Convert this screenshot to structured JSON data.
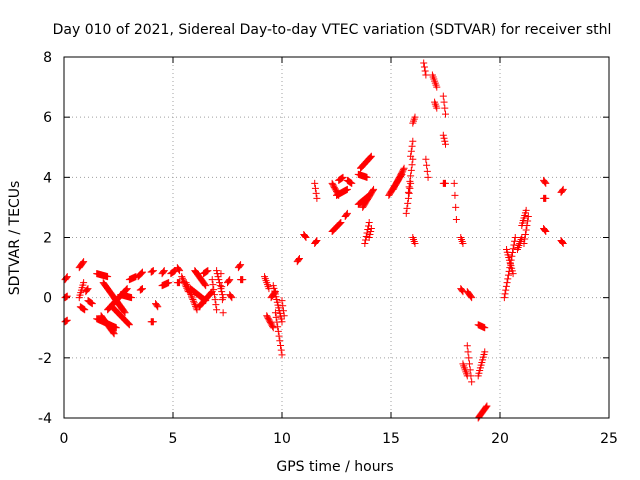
{
  "chart_data": {
    "type": "scatter",
    "title": "Day 010 of 2021, Sidereal Day-to-day VTEC variation (SDTVAR) for receiver sthl",
    "xlabel": "GPS time / hours",
    "ylabel": "SDTVAR / TECUs",
    "xlim": [
      0,
      25
    ],
    "ylim": [
      -4,
      8
    ],
    "xticks": [
      0,
      5,
      10,
      15,
      20,
      25
    ],
    "yticks": [
      -4,
      -2,
      0,
      2,
      4,
      6,
      8
    ],
    "xtick_labels": [
      "0",
      "5",
      "10",
      "15",
      "20",
      "25"
    ],
    "ytick_labels": [
      "-4",
      "-2",
      "0",
      "2",
      "4",
      "6",
      "8"
    ],
    "grid": true,
    "marker": "+",
    "color": "#ff0000",
    "segments": [
      {
        "x0": 0.05,
        "x1": 0.15,
        "y0": 0.6,
        "y1": 0.7
      },
      {
        "x0": 0.05,
        "x1": 0.15,
        "y0": 0.0,
        "y1": 0.05
      },
      {
        "x0": 0.05,
        "x1": 0.15,
        "y0": -0.8,
        "y1": -0.75
      },
      {
        "x0": 0.7,
        "x1": 0.9,
        "y0": 1.0,
        "y1": 1.2
      },
      {
        "x0": 0.7,
        "x1": 0.9,
        "y0": 0.0,
        "y1": 0.5
      },
      {
        "x0": 0.75,
        "x1": 0.95,
        "y0": -0.3,
        "y1": -0.4
      },
      {
        "x0": 1.0,
        "x1": 1.1,
        "y0": 0.2,
        "y1": 0.3
      },
      {
        "x0": 1.1,
        "x1": 1.3,
        "y0": -0.1,
        "y1": -0.2
      },
      {
        "x0": 1.5,
        "x1": 2.0,
        "y0": 0.8,
        "y1": 0.7
      },
      {
        "x0": 1.5,
        "x1": 2.4,
        "y0": -0.7,
        "y1": -1.0
      },
      {
        "x0": 1.7,
        "x1": 2.3,
        "y0": -0.6,
        "y1": -1.2
      },
      {
        "x0": 1.8,
        "x1": 2.8,
        "y0": 0.5,
        "y1": -0.5
      },
      {
        "x0": 2.0,
        "x1": 2.9,
        "y0": -0.4,
        "y1": 0.3
      },
      {
        "x0": 2.2,
        "x1": 3.0,
        "y0": -0.3,
        "y1": -0.9
      },
      {
        "x0": 2.3,
        "x1": 2.7,
        "y0": 0.0,
        "y1": -0.4
      },
      {
        "x0": 2.6,
        "x1": 3.1,
        "y0": 0.1,
        "y1": 0.0
      },
      {
        "x0": 3.0,
        "x1": 3.3,
        "y0": 0.6,
        "y1": 0.7
      },
      {
        "x0": 3.4,
        "x1": 3.6,
        "y0": 0.7,
        "y1": 0.85
      },
      {
        "x0": 3.5,
        "x1": 3.6,
        "y0": 0.25,
        "y1": 0.3
      },
      {
        "x0": 4.0,
        "x1": 4.1,
        "y0": 0.85,
        "y1": 0.9
      },
      {
        "x0": 4.0,
        "x1": 4.1,
        "y0": -0.8,
        "y1": -0.8
      },
      {
        "x0": 4.2,
        "x1": 4.3,
        "y0": -0.2,
        "y1": -0.3
      },
      {
        "x0": 4.5,
        "x1": 4.6,
        "y0": 0.8,
        "y1": 0.9
      },
      {
        "x0": 4.5,
        "x1": 4.8,
        "y0": 0.4,
        "y1": 0.5
      },
      {
        "x0": 4.9,
        "x1": 5.1,
        "y0": 0.8,
        "y1": 0.9
      },
      {
        "x0": 5.2,
        "x1": 5.3,
        "y0": 1.0,
        "y1": 0.9
      },
      {
        "x0": 5.2,
        "x1": 5.3,
        "y0": 0.5,
        "y1": 0.5
      },
      {
        "x0": 5.4,
        "x1": 5.7,
        "y0": 0.7,
        "y1": 0.2
      },
      {
        "x0": 5.6,
        "x1": 6.1,
        "y0": 0.5,
        "y1": -0.4
      },
      {
        "x0": 5.8,
        "x1": 6.5,
        "y0": 0.3,
        "y1": -0.1
      },
      {
        "x0": 6.0,
        "x1": 6.5,
        "y0": 0.9,
        "y1": 0.4
      },
      {
        "x0": 6.2,
        "x1": 6.8,
        "y0": -0.3,
        "y1": 0.2
      },
      {
        "x0": 6.4,
        "x1": 6.6,
        "y0": 0.8,
        "y1": 0.9
      },
      {
        "x0": 6.8,
        "x1": 7.0,
        "y0": 0.6,
        "y1": -0.4
      },
      {
        "x0": 7.0,
        "x1": 7.3,
        "y0": 0.9,
        "y1": 0.0
      },
      {
        "x0": 7.2,
        "x1": 7.3,
        "y0": 0.8,
        "y1": -0.5
      },
      {
        "x0": 7.5,
        "x1": 7.6,
        "y0": 0.5,
        "y1": 0.6
      },
      {
        "x0": 7.6,
        "x1": 7.7,
        "y0": 0.1,
        "y1": 0.0
      },
      {
        "x0": 8.0,
        "x1": 8.1,
        "y0": 1.0,
        "y1": 1.1
      },
      {
        "x0": 8.1,
        "x1": 8.2,
        "y0": 0.6,
        "y1": 0.6
      },
      {
        "x0": 9.2,
        "x1": 9.4,
        "y0": 0.7,
        "y1": 0.3
      },
      {
        "x0": 9.3,
        "x1": 9.6,
        "y0": -0.6,
        "y1": -1.0
      },
      {
        "x0": 9.5,
        "x1": 9.7,
        "y0": 0.0,
        "y1": 0.2
      },
      {
        "x0": 9.6,
        "x1": 10.0,
        "y0": 0.4,
        "y1": -0.8
      },
      {
        "x0": 9.7,
        "x1": 10.0,
        "y0": -0.5,
        "y1": -1.9
      },
      {
        "x0": 10.0,
        "x1": 10.1,
        "y0": -0.1,
        "y1": -0.6
      },
      {
        "x0": 10.7,
        "x1": 10.8,
        "y0": 1.2,
        "y1": 1.3
      },
      {
        "x0": 11.0,
        "x1": 11.1,
        "y0": 2.1,
        "y1": 2.0
      },
      {
        "x0": 11.5,
        "x1": 11.6,
        "y0": 3.8,
        "y1": 3.3
      },
      {
        "x0": 11.5,
        "x1": 11.6,
        "y0": 1.8,
        "y1": 1.9
      },
      {
        "x0": 12.3,
        "x1": 12.6,
        "y0": 3.8,
        "y1": 3.4
      },
      {
        "x0": 12.3,
        "x1": 12.7,
        "y0": 2.2,
        "y1": 2.5
      },
      {
        "x0": 12.5,
        "x1": 13.0,
        "y0": 3.4,
        "y1": 3.6
      },
      {
        "x0": 12.6,
        "x1": 12.8,
        "y0": 3.9,
        "y1": 4.0
      },
      {
        "x0": 12.9,
        "x1": 13.0,
        "y0": 2.7,
        "y1": 2.8
      },
      {
        "x0": 13.0,
        "x1": 13.2,
        "y0": 3.9,
        "y1": 3.8
      },
      {
        "x0": 13.5,
        "x1": 14.0,
        "y0": 3.1,
        "y1": 3.4
      },
      {
        "x0": 13.5,
        "x1": 13.9,
        "y0": 4.1,
        "y1": 4.0
      },
      {
        "x0": 13.6,
        "x1": 14.1,
        "y0": 4.3,
        "y1": 4.7
      },
      {
        "x0": 13.7,
        "x1": 14.2,
        "y0": 3.0,
        "y1": 3.6
      },
      {
        "x0": 13.8,
        "x1": 14.0,
        "y0": 1.8,
        "y1": 2.5
      },
      {
        "x0": 14.0,
        "x1": 14.1,
        "y0": 2.0,
        "y1": 2.3
      },
      {
        "x0": 14.9,
        "x1": 15.5,
        "y0": 3.4,
        "y1": 4.1
      },
      {
        "x0": 15.1,
        "x1": 15.6,
        "y0": 3.6,
        "y1": 4.3
      },
      {
        "x0": 15.7,
        "x1": 15.9,
        "y0": 2.8,
        "y1": 3.8
      },
      {
        "x0": 15.8,
        "x1": 16.0,
        "y0": 3.5,
        "y1": 4.6
      },
      {
        "x0": 15.9,
        "x1": 16.0,
        "y0": 4.7,
        "y1": 5.2
      },
      {
        "x0": 16.0,
        "x1": 16.1,
        "y0": 5.8,
        "y1": 6.0
      },
      {
        "x0": 16.0,
        "x1": 16.1,
        "y0": 2.0,
        "y1": 1.8
      },
      {
        "x0": 16.5,
        "x1": 16.6,
        "y0": 7.8,
        "y1": 7.4
      },
      {
        "x0": 16.6,
        "x1": 16.7,
        "y0": 4.6,
        "y1": 4.0
      },
      {
        "x0": 16.9,
        "x1": 17.1,
        "y0": 7.4,
        "y1": 7.0
      },
      {
        "x0": 17.0,
        "x1": 17.1,
        "y0": 6.5,
        "y1": 6.3
      },
      {
        "x0": 17.4,
        "x1": 17.5,
        "y0": 6.7,
        "y1": 6.1
      },
      {
        "x0": 17.4,
        "x1": 17.5,
        "y0": 5.4,
        "y1": 5.1
      },
      {
        "x0": 17.4,
        "x1": 17.5,
        "y0": 3.8,
        "y1": 3.8
      },
      {
        "x0": 17.9,
        "x1": 18.0,
        "y0": 3.8,
        "y1": 2.6
      },
      {
        "x0": 18.2,
        "x1": 18.3,
        "y0": 2.0,
        "y1": 1.8
      },
      {
        "x0": 18.2,
        "x1": 18.3,
        "y0": 0.3,
        "y1": 0.2
      },
      {
        "x0": 18.3,
        "x1": 18.5,
        "y0": -2.2,
        "y1": -2.6
      },
      {
        "x0": 18.5,
        "x1": 18.7,
        "y0": 0.2,
        "y1": 0.0
      },
      {
        "x0": 18.5,
        "x1": 18.7,
        "y0": -1.6,
        "y1": -2.8
      },
      {
        "x0": 19.0,
        "x1": 19.3,
        "y0": -0.9,
        "y1": -1.0
      },
      {
        "x0": 19.0,
        "x1": 19.3,
        "y0": -2.6,
        "y1": -1.8
      },
      {
        "x0": 19.0,
        "x1": 19.4,
        "y0": -4.0,
        "y1": -3.6
      },
      {
        "x0": 20.2,
        "x1": 20.7,
        "y0": 0.0,
        "y1": 2.0
      },
      {
        "x0": 20.3,
        "x1": 20.6,
        "y0": 1.6,
        "y1": 0.8
      },
      {
        "x0": 20.8,
        "x1": 21.0,
        "y0": 1.6,
        "y1": 2.0
      },
      {
        "x0": 21.0,
        "x1": 21.2,
        "y0": 2.4,
        "y1": 2.9
      },
      {
        "x0": 21.1,
        "x1": 21.3,
        "y0": 1.8,
        "y1": 2.7
      },
      {
        "x0": 22.0,
        "x1": 22.1,
        "y0": 3.9,
        "y1": 3.8
      },
      {
        "x0": 22.0,
        "x1": 22.1,
        "y0": 3.3,
        "y1": 3.3
      },
      {
        "x0": 22.0,
        "x1": 22.1,
        "y0": 2.3,
        "y1": 2.2
      },
      {
        "x0": 22.8,
        "x1": 22.9,
        "y0": 3.5,
        "y1": 3.6
      },
      {
        "x0": 22.8,
        "x1": 22.9,
        "y0": 1.9,
        "y1": 1.8
      }
    ]
  }
}
